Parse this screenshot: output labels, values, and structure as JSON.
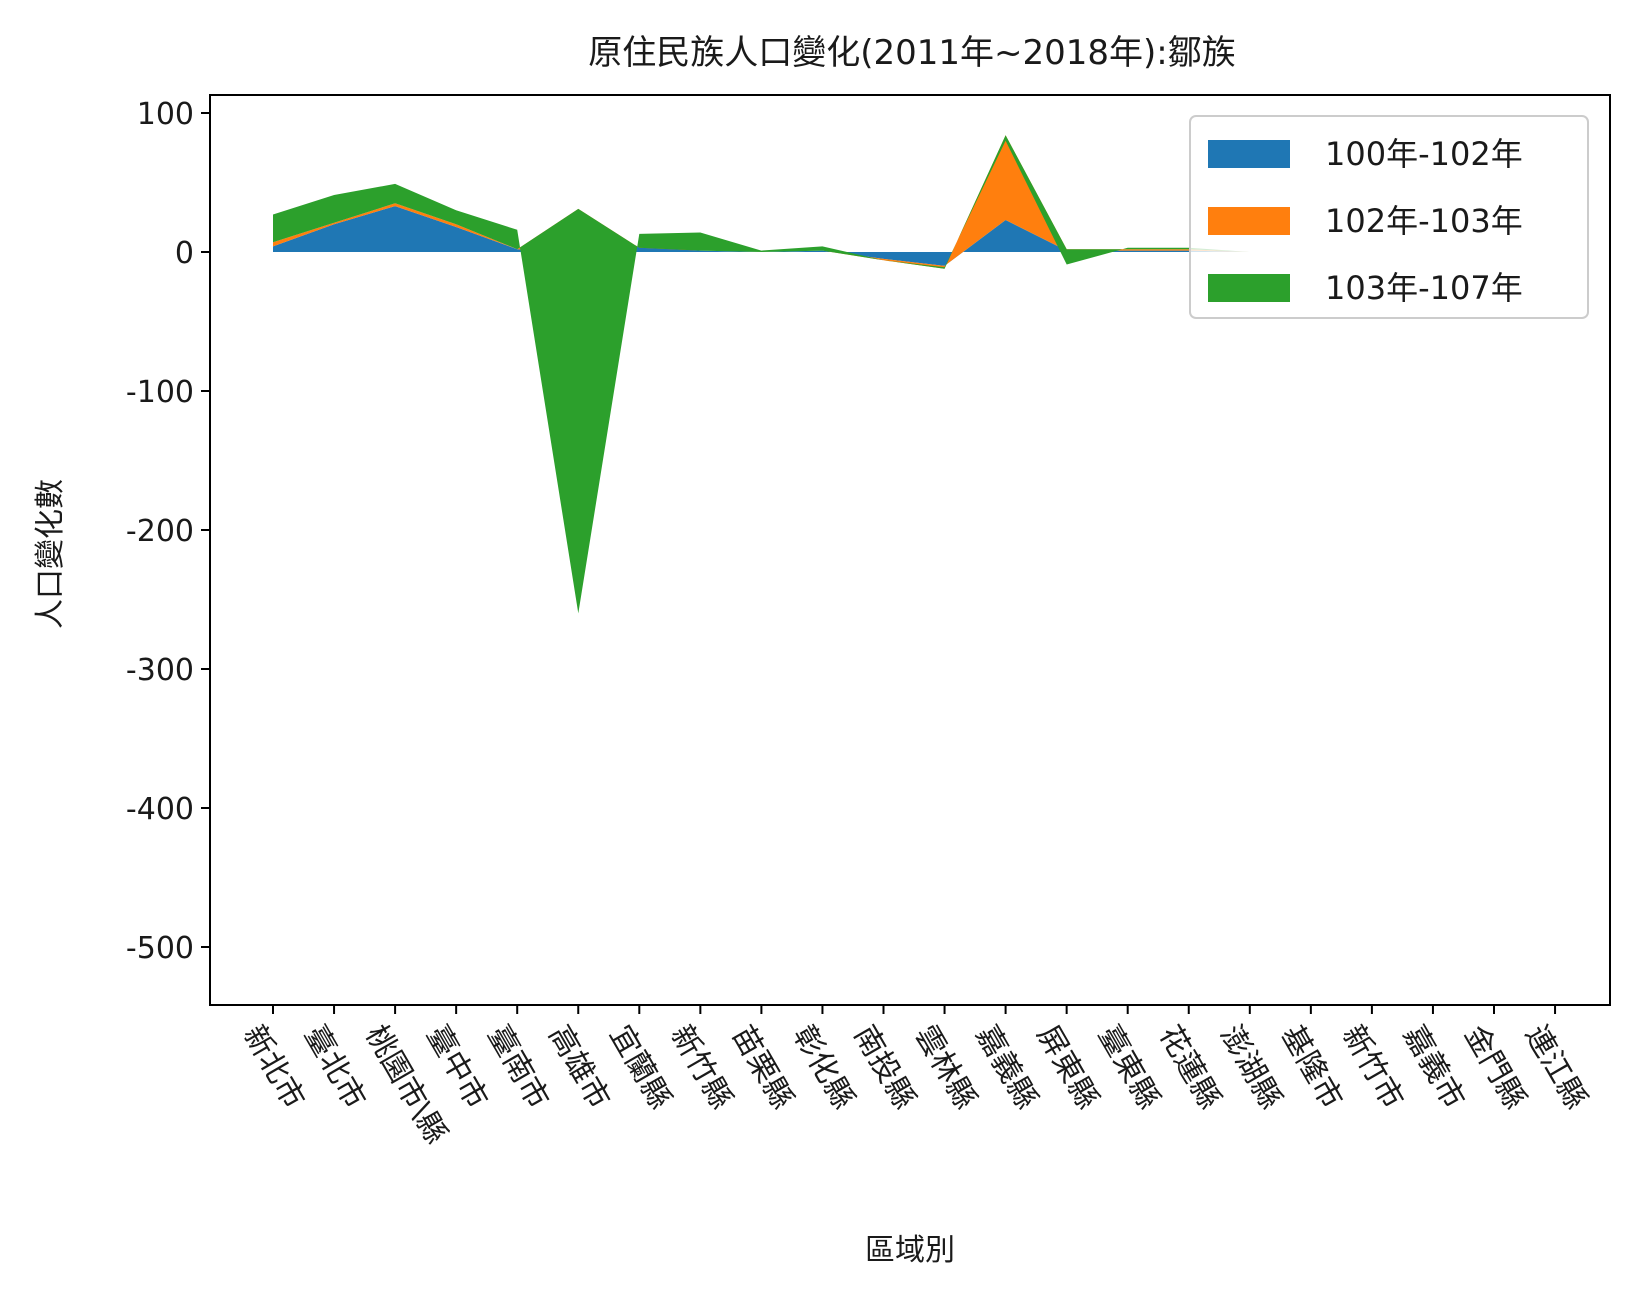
{
  "chart_data": {
    "type": "area",
    "title": "原住民族人口變化(2011年~2018年):鄒族",
    "xlabel": "區域別",
    "ylabel": "人口變化數",
    "ylim": [
      -545,
      115
    ],
    "yticks": [
      100,
      0,
      -100,
      -200,
      -300,
      -400,
      -500
    ],
    "ytick_labels": [
      "100",
      "0",
      "-100",
      "-200",
      "-300",
      "-400",
      "-500"
    ],
    "grid": false,
    "legend_position": "top-right",
    "categories": [
      "新北市",
      "臺北市",
      "桃園市\\縣",
      "臺中市",
      "臺南市",
      "高雄市",
      "宜蘭縣",
      "新竹縣",
      "苗栗縣",
      "彰化縣",
      "南投縣",
      "雲林縣",
      "嘉義縣",
      "屏東縣",
      "臺東縣",
      "花蓮縣",
      "澎湖縣",
      "基隆市",
      "新竹市",
      "嘉義市",
      "金門縣",
      "連江縣"
    ],
    "series": [
      {
        "name": "100年-102年",
        "color": "#1f77b4",
        "values": [
          4,
          20,
          33,
          18,
          2,
          0,
          4,
          1,
          0,
          1,
          -5,
          -10,
          23,
          1,
          1,
          1,
          0,
          0,
          0,
          0,
          0,
          0
        ]
      },
      {
        "name": "102年-103年",
        "color": "#ff7f0e",
        "values": [
          3,
          1,
          2,
          2,
          0,
          31,
          -1,
          0,
          0,
          0,
          -1,
          -2,
          61,
          1,
          1,
          1,
          0,
          0,
          0,
          0,
          0,
          0
        ]
      },
      {
        "name": "103年-107年",
        "color": "#2ca02c",
        "values": [
          20,
          20,
          14,
          10,
          14,
          -291,
          10,
          13,
          1,
          3,
          0,
          1,
          -4,
          -11,
          1,
          1,
          0,
          0,
          0,
          0,
          0,
          0
        ]
      }
    ]
  }
}
